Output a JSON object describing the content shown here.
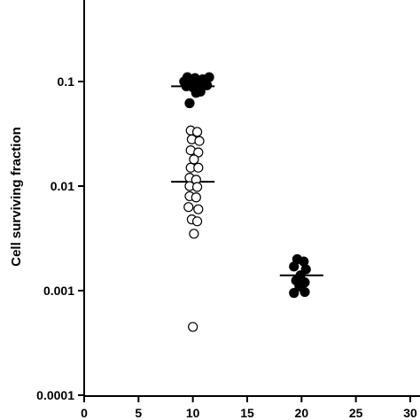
{
  "chart_data": {
    "type": "scatter",
    "title": "",
    "xlabel": "",
    "ylabel": "Cell surviving fraction",
    "xlim": [
      0,
      30
    ],
    "ylim": [
      0.0001,
      1
    ],
    "yscale": "log",
    "grid": false,
    "x_ticks": [
      0,
      5,
      10,
      15,
      20,
      25,
      30
    ],
    "x_tick_labels": [
      "0",
      "5",
      "10",
      "15",
      "20",
      "25",
      "30"
    ],
    "y_ticks": [
      0.0001,
      0.001,
      0.01,
      0.1
    ],
    "y_tick_labels": [
      "0.0001",
      "0.001",
      "0.01",
      "0.1"
    ],
    "series": [
      {
        "marker": "filled-circle",
        "color": "#000000",
        "points": [
          {
            "x": 9.5,
            "y": 0.11
          },
          {
            "x": 10.2,
            "y": 0.108
          },
          {
            "x": 10.9,
            "y": 0.105
          },
          {
            "x": 11.5,
            "y": 0.11
          },
          {
            "x": 9.2,
            "y": 0.1
          },
          {
            "x": 9.8,
            "y": 0.1
          },
          {
            "x": 10.4,
            "y": 0.098
          },
          {
            "x": 11.0,
            "y": 0.097
          },
          {
            "x": 9.4,
            "y": 0.09
          },
          {
            "x": 10.0,
            "y": 0.088
          },
          {
            "x": 10.8,
            "y": 0.089
          },
          {
            "x": 11.3,
            "y": 0.092
          },
          {
            "x": 10.3,
            "y": 0.078
          },
          {
            "x": 10.7,
            "y": 0.08
          },
          {
            "x": 9.7,
            "y": 0.062
          },
          {
            "x": 19.6,
            "y": 0.002
          },
          {
            "x": 20.2,
            "y": 0.0019
          },
          {
            "x": 19.3,
            "y": 0.0017
          },
          {
            "x": 20.4,
            "y": 0.0016
          },
          {
            "x": 19.9,
            "y": 0.0014
          },
          {
            "x": 19.5,
            "y": 0.00125
          },
          {
            "x": 20.3,
            "y": 0.0012
          },
          {
            "x": 19.8,
            "y": 0.0011
          },
          {
            "x": 19.3,
            "y": 0.00095
          },
          {
            "x": 20.3,
            "y": 0.00097
          }
        ]
      },
      {
        "marker": "open-circle",
        "color": "#000000",
        "points": [
          {
            "x": 9.8,
            "y": 0.034
          },
          {
            "x": 10.4,
            "y": 0.033
          },
          {
            "x": 9.9,
            "y": 0.028
          },
          {
            "x": 10.6,
            "y": 0.027
          },
          {
            "x": 9.8,
            "y": 0.022
          },
          {
            "x": 10.5,
            "y": 0.021
          },
          {
            "x": 10.1,
            "y": 0.018
          },
          {
            "x": 9.8,
            "y": 0.015
          },
          {
            "x": 10.5,
            "y": 0.015
          },
          {
            "x": 9.7,
            "y": 0.012
          },
          {
            "x": 10.3,
            "y": 0.0115
          },
          {
            "x": 9.7,
            "y": 0.01
          },
          {
            "x": 10.4,
            "y": 0.0098
          },
          {
            "x": 9.7,
            "y": 0.008
          },
          {
            "x": 10.3,
            "y": 0.0078
          },
          {
            "x": 9.6,
            "y": 0.0063
          },
          {
            "x": 10.5,
            "y": 0.006
          },
          {
            "x": 9.9,
            "y": 0.0048
          },
          {
            "x": 10.4,
            "y": 0.0046
          },
          {
            "x": 10.1,
            "y": 0.0035
          },
          {
            "x": 10.0,
            "y": 0.00045
          }
        ]
      }
    ],
    "median_lines": [
      {
        "x_center": 10,
        "half_width": 2,
        "y": 0.09
      },
      {
        "x_center": 10,
        "half_width": 2,
        "y": 0.011
      },
      {
        "x_center": 20,
        "half_width": 2,
        "y": 0.0014
      }
    ]
  }
}
